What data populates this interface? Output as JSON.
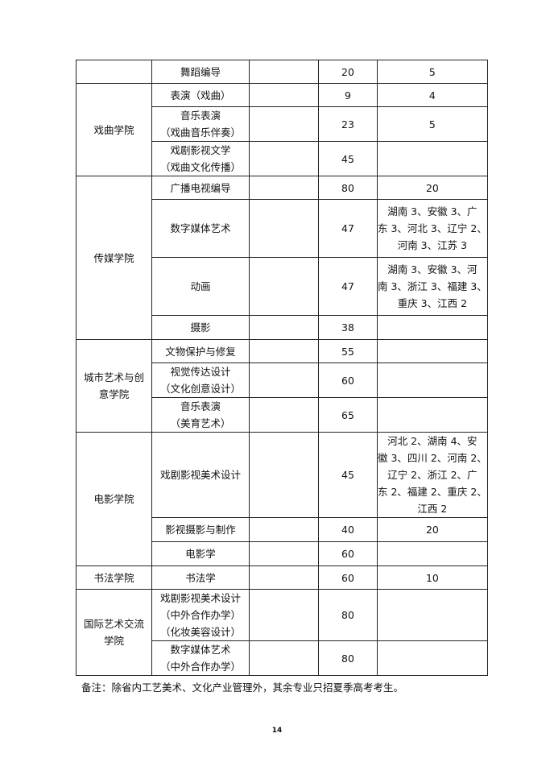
{
  "table": {
    "rows": [
      {
        "college": null,
        "major": [
          "舞蹈编导"
        ],
        "col3": "",
        "plan": "20",
        "quota": [
          "5"
        ]
      },
      {
        "college": [
          "戏曲学院"
        ],
        "span": 3,
        "major": [
          "表演（戏曲）"
        ],
        "col3": "",
        "plan": "9",
        "quota": [
          "4"
        ]
      },
      {
        "major": [
          "音乐表演",
          "（戏曲音乐伴奏）"
        ],
        "col3": "",
        "plan": "23",
        "quota": [
          "5"
        ]
      },
      {
        "major": [
          "戏剧影视文学",
          "（戏曲文化传播）"
        ],
        "col3": "",
        "plan": "45",
        "quota": []
      },
      {
        "college": [
          "传媒学院"
        ],
        "span": 4,
        "major": [
          "广播电视编导"
        ],
        "col3": "",
        "plan": "80",
        "quota": [
          "20"
        ]
      },
      {
        "major": [
          "数字媒体艺术"
        ],
        "col3": "",
        "plan": "47",
        "quota": [
          "湖南 3、安徽 3、广",
          "东 3、河北 3、辽宁 2、",
          "河南 3、江苏 3"
        ]
      },
      {
        "major": [
          "动画"
        ],
        "col3": "",
        "plan": "47",
        "quota": [
          "湖南 3、安徽 3、河",
          "南 3、浙江 3、福建 3、",
          "重庆 3、江西 2"
        ]
      },
      {
        "major": [
          "摄影"
        ],
        "col3": "",
        "plan": "38",
        "quota": []
      },
      {
        "college": [
          "城市艺术与创",
          "意学院"
        ],
        "span": 3,
        "major": [
          "文物保护与修复"
        ],
        "col3": "",
        "plan": "55",
        "quota": []
      },
      {
        "major": [
          "视觉传达设计",
          "（文化创意设计）"
        ],
        "col3": "",
        "plan": "60",
        "quota": []
      },
      {
        "major": [
          "音乐表演",
          "（美育艺术）"
        ],
        "col3": "",
        "plan": "65",
        "quota": []
      },
      {
        "college": [
          "电影学院"
        ],
        "span": 3,
        "major": [
          "戏剧影视美术设计"
        ],
        "col3": "",
        "plan": "45",
        "quota": [
          "河北 2、湖南 4、安",
          "徽 3、四川 2、河南 2、",
          "辽宁 2、浙江 2、广",
          "东 2、福建 2、重庆 2、",
          "江西 2"
        ]
      },
      {
        "major": [
          "影视摄影与制作"
        ],
        "col3": "",
        "plan": "40",
        "quota": [
          "20"
        ]
      },
      {
        "major": [
          "电影学"
        ],
        "col3": "",
        "plan": "60",
        "quota": []
      },
      {
        "college": [
          "书法学院"
        ],
        "span": 1,
        "major": [
          "书法学"
        ],
        "col3": "",
        "plan": "60",
        "quota": [
          "10"
        ]
      },
      {
        "college": [
          "国际艺术交流",
          "学院"
        ],
        "span": 2,
        "major": [
          "戏剧影视美术设计",
          "（中外合作办学）",
          "（化妆美容设计）"
        ],
        "col3": "",
        "plan": "80",
        "quota": []
      },
      {
        "major": [
          "数字媒体艺术",
          "（中外合作办学）"
        ],
        "col3": "",
        "plan": "80",
        "quota": []
      }
    ]
  },
  "note": "备注：除省内工艺美术、文化产业管理外，其余专业只招夏季高考考生。",
  "page_number": "14"
}
